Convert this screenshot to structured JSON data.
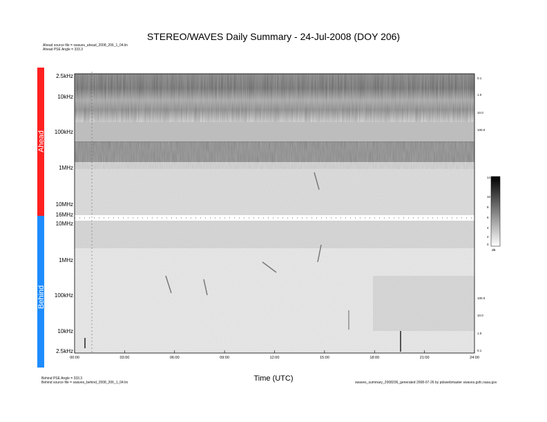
{
  "title": "STEREO/WAVES Daily Summary - 24-Jul-2008 (DOY 206)",
  "header_notes": {
    "ahead_source": "Ahead source file = swaves_ahead_2008_206_1_04.lin",
    "ahead_angle": "Ahead PSE Angle = 333.3"
  },
  "footer_notes": {
    "behind_angle": "Behind PSE Angle = 333.3",
    "behind_source": "Behind source file = swaves_behind_2008_206_1_04.lin",
    "credit": "swaves_summary_2008206_generated 2008-07-26 by pdswebmaster swaves.gsfc.nasa.gov"
  },
  "chart_data": {
    "type": "heatmap",
    "panels": [
      {
        "name": "Ahead",
        "color": "#ff2020",
        "freq_labels": [
          "2.5kHz",
          "10kHz",
          "100kHz",
          "1MHz",
          "10MHz",
          "16MHz"
        ]
      },
      {
        "name": "Behind",
        "color": "#1e8cff",
        "freq_labels": [
          "10MHz",
          "1MHz",
          "100kHz",
          "10kHz",
          "2.5kHz"
        ]
      }
    ],
    "x_ticks": [
      "00:00",
      "03:00",
      "06:00",
      "09:00",
      "12:00",
      "15:00",
      "18:00",
      "21:00",
      "24:00"
    ],
    "xlabel": "Time (UTC)",
    "x_range_hours": [
      0,
      24
    ],
    "ahead_right_labels": [
      "0.1",
      "1.0",
      "10.0",
      "100.0"
    ],
    "behind_right_labels": [
      "100.0",
      "10.0",
      "1.0",
      "0.1"
    ],
    "colorbar": {
      "ticks": [
        "14",
        "10",
        "8",
        "6",
        "4",
        "2",
        "0"
      ],
      "unit": "dB",
      "range": [
        0,
        14
      ]
    }
  },
  "colors": {
    "ahead": "#ff2020",
    "behind": "#1e8cff"
  }
}
